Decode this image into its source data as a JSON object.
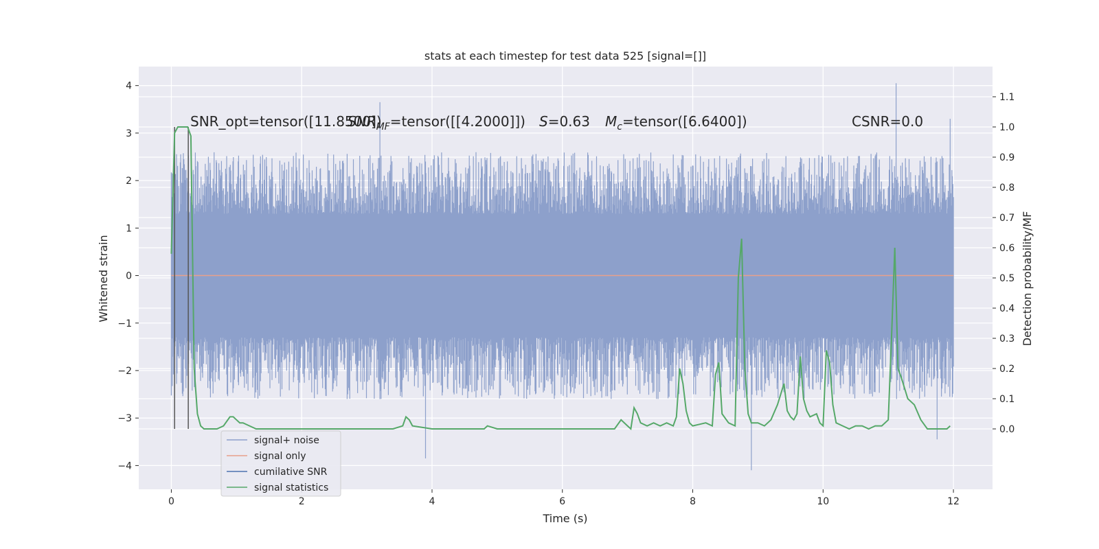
{
  "chart_data": {
    "type": "line",
    "title": "stats at each timestep for test data 525 [signal=[]]",
    "xlabel": "Time (s)",
    "ylabel_left": "Whitened strain",
    "ylabel_right": "Detection probability/MF",
    "xlim": [
      -0.5,
      12.6
    ],
    "ylim_left": [
      -4.5,
      4.4
    ],
    "ylim_right": [
      -0.2,
      1.2
    ],
    "x_ticks": [
      0,
      2,
      4,
      6,
      8,
      10,
      12
    ],
    "y_left_ticks": [
      -4,
      -3,
      -2,
      -1,
      0,
      1,
      2,
      3,
      4
    ],
    "y_right_ticks": [
      0.0,
      0.1,
      0.2,
      0.3,
      0.4,
      0.5,
      0.6,
      0.7,
      0.8,
      0.9,
      1.0,
      1.1
    ],
    "x_tick_labels": [
      "0",
      "2",
      "4",
      "6",
      "8",
      "10",
      "12"
    ],
    "y_left_tick_labels": [
      "−4",
      "−3",
      "−2",
      "−1",
      "0",
      "1",
      "2",
      "3",
      "4"
    ],
    "y_right_tick_labels": [
      "0.0",
      "0.1",
      "0.2",
      "0.3",
      "0.4",
      "0.5",
      "0.6",
      "0.7",
      "0.8",
      "0.9",
      "1.0",
      "1.1"
    ],
    "grid": true,
    "annotations": {
      "snr_opt": "SNR_opt=tensor([11.8500])",
      "snr_mf": "SNR",
      "snr_mf_sub": "MF",
      "snr_mf_rest": "=tensor([[4.2000]])",
      "s_label": "S",
      "s_rest": "=0.63",
      "mc_label": "M",
      "mc_sub": "c",
      "mc_rest": "=tensor([6.6400])",
      "csnr": "CSNR=0.0"
    },
    "legend": {
      "location": "lower-left",
      "entries": [
        {
          "label": "signal+ noise",
          "color": "#8da0cb"
        },
        {
          "label": "signal only",
          "color": "#e8a08a"
        },
        {
          "label": "cumilative SNR",
          "color": "#4c72b0"
        },
        {
          "label": "signal statistics",
          "color": "#55a868"
        }
      ]
    },
    "vlines_x": [
      0.05,
      0.26
    ],
    "series": [
      {
        "name": "signal+ noise",
        "color": "#8da0cb",
        "axis": "left",
        "t_range": [
          0,
          12
        ],
        "body_envelope": [
          -1.3,
          1.3
        ],
        "peak_upper": 4.05,
        "peak_lower": -4.1
      },
      {
        "name": "signal only",
        "color": "#e8a08a",
        "axis": "left",
        "x": [
          0,
          12
        ],
        "values": [
          0,
          0
        ]
      },
      {
        "name": "signal statistics",
        "color": "#55a868",
        "axis": "right",
        "x": [
          0.0,
          0.05,
          0.1,
          0.15,
          0.2,
          0.25,
          0.3,
          0.35,
          0.4,
          0.45,
          0.5,
          0.6,
          0.7,
          0.8,
          0.9,
          0.95,
          1.0,
          1.05,
          1.1,
          1.2,
          1.3,
          1.5,
          1.8,
          2.0,
          2.5,
          3.0,
          3.2,
          3.4,
          3.55,
          3.6,
          3.65,
          3.7,
          4.0,
          4.5,
          4.8,
          4.85,
          5.0,
          5.5,
          6.0,
          6.5,
          6.8,
          6.9,
          7.0,
          7.05,
          7.1,
          7.15,
          7.2,
          7.3,
          7.4,
          7.5,
          7.6,
          7.7,
          7.75,
          7.8,
          7.85,
          7.9,
          7.95,
          8.0,
          8.2,
          8.3,
          8.35,
          8.4,
          8.45,
          8.55,
          8.65,
          8.7,
          8.75,
          8.8,
          8.85,
          8.9,
          9.0,
          9.1,
          9.2,
          9.3,
          9.4,
          9.45,
          9.5,
          9.55,
          9.6,
          9.65,
          9.7,
          9.75,
          9.8,
          9.9,
          9.95,
          10.0,
          10.05,
          10.1,
          10.15,
          10.2,
          10.3,
          10.4,
          10.5,
          10.6,
          10.7,
          10.8,
          10.9,
          11.0,
          11.05,
          11.1,
          11.15,
          11.2,
          11.3,
          11.4,
          11.5,
          11.6,
          11.7,
          11.8,
          11.9,
          11.95
        ],
        "values": [
          0.58,
          0.98,
          1.0,
          1.0,
          1.0,
          1.0,
          0.97,
          0.2,
          0.05,
          0.01,
          0.0,
          0.0,
          0.0,
          0.01,
          0.04,
          0.04,
          0.03,
          0.02,
          0.02,
          0.01,
          0.0,
          0.0,
          0.0,
          0.0,
          0.0,
          0.0,
          0.0,
          0.0,
          0.01,
          0.04,
          0.03,
          0.01,
          0.0,
          0.0,
          0.0,
          0.01,
          0.0,
          0.0,
          0.0,
          0.0,
          0.0,
          0.03,
          0.01,
          0.0,
          0.07,
          0.05,
          0.02,
          0.01,
          0.02,
          0.01,
          0.02,
          0.01,
          0.04,
          0.2,
          0.15,
          0.06,
          0.02,
          0.01,
          0.02,
          0.01,
          0.18,
          0.22,
          0.05,
          0.02,
          0.01,
          0.5,
          0.63,
          0.2,
          0.05,
          0.02,
          0.02,
          0.01,
          0.03,
          0.08,
          0.15,
          0.06,
          0.04,
          0.03,
          0.05,
          0.24,
          0.1,
          0.06,
          0.04,
          0.05,
          0.02,
          0.01,
          0.26,
          0.22,
          0.08,
          0.02,
          0.01,
          0.0,
          0.01,
          0.01,
          0.0,
          0.01,
          0.01,
          0.03,
          0.3,
          0.6,
          0.2,
          0.17,
          0.1,
          0.08,
          0.03,
          0.0,
          0.0,
          0.0,
          0.0,
          0.01
        ]
      }
    ]
  }
}
